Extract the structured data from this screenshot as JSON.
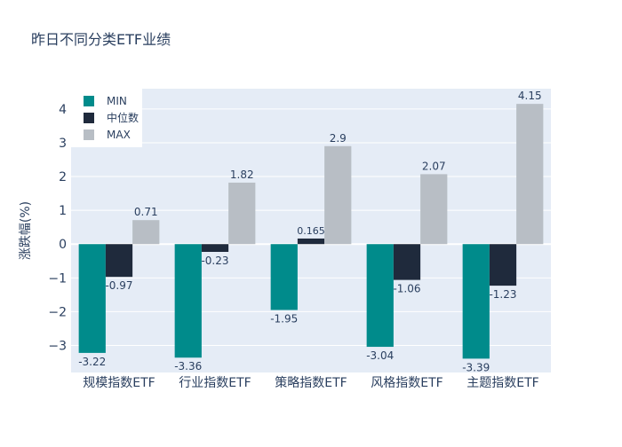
{
  "chart_data": {
    "type": "bar",
    "title": "昨日不同分类ETF业绩",
    "xlabel": "",
    "ylabel": "涨跌幅(%)",
    "categories": [
      "规模指数ETF",
      "行业指数ETF",
      "策略指数ETF",
      "风格指数ETF",
      "主题指数ETF"
    ],
    "series": [
      {
        "name": "MIN",
        "color": "#008b8b",
        "values": [
          -3.22,
          -3.36,
          -1.95,
          -3.04,
          -3.39
        ],
        "labels": [
          "-3.22",
          "-3.36",
          "-1.95",
          "-3.04",
          "-3.39"
        ]
      },
      {
        "name": "中位数",
        "color": "#1f2a3c",
        "values": [
          -0.97,
          -0.23,
          0.165,
          -1.06,
          -1.23
        ],
        "labels": [
          "-0.97",
          "-0.23",
          "0.165",
          "-1.06",
          "-1.23"
        ]
      },
      {
        "name": "MAX",
        "color": "#b8bec5",
        "values": [
          0.71,
          1.82,
          2.9,
          2.07,
          4.15
        ],
        "labels": [
          "0.71",
          "1.82",
          "2.9",
          "2.07",
          "4.15"
        ]
      }
    ],
    "ylim": [
      -3.8,
      4.6
    ],
    "yticks": [
      -3,
      -2,
      -1,
      0,
      1,
      2,
      3,
      4
    ],
    "ytick_labels": [
      "−3",
      "−2",
      "−1",
      "0",
      "1",
      "2",
      "3",
      "4"
    ],
    "grid": true,
    "legend_position": "top-left",
    "plot_bg": "#e5ecf6",
    "grid_color": "#ffffff"
  }
}
